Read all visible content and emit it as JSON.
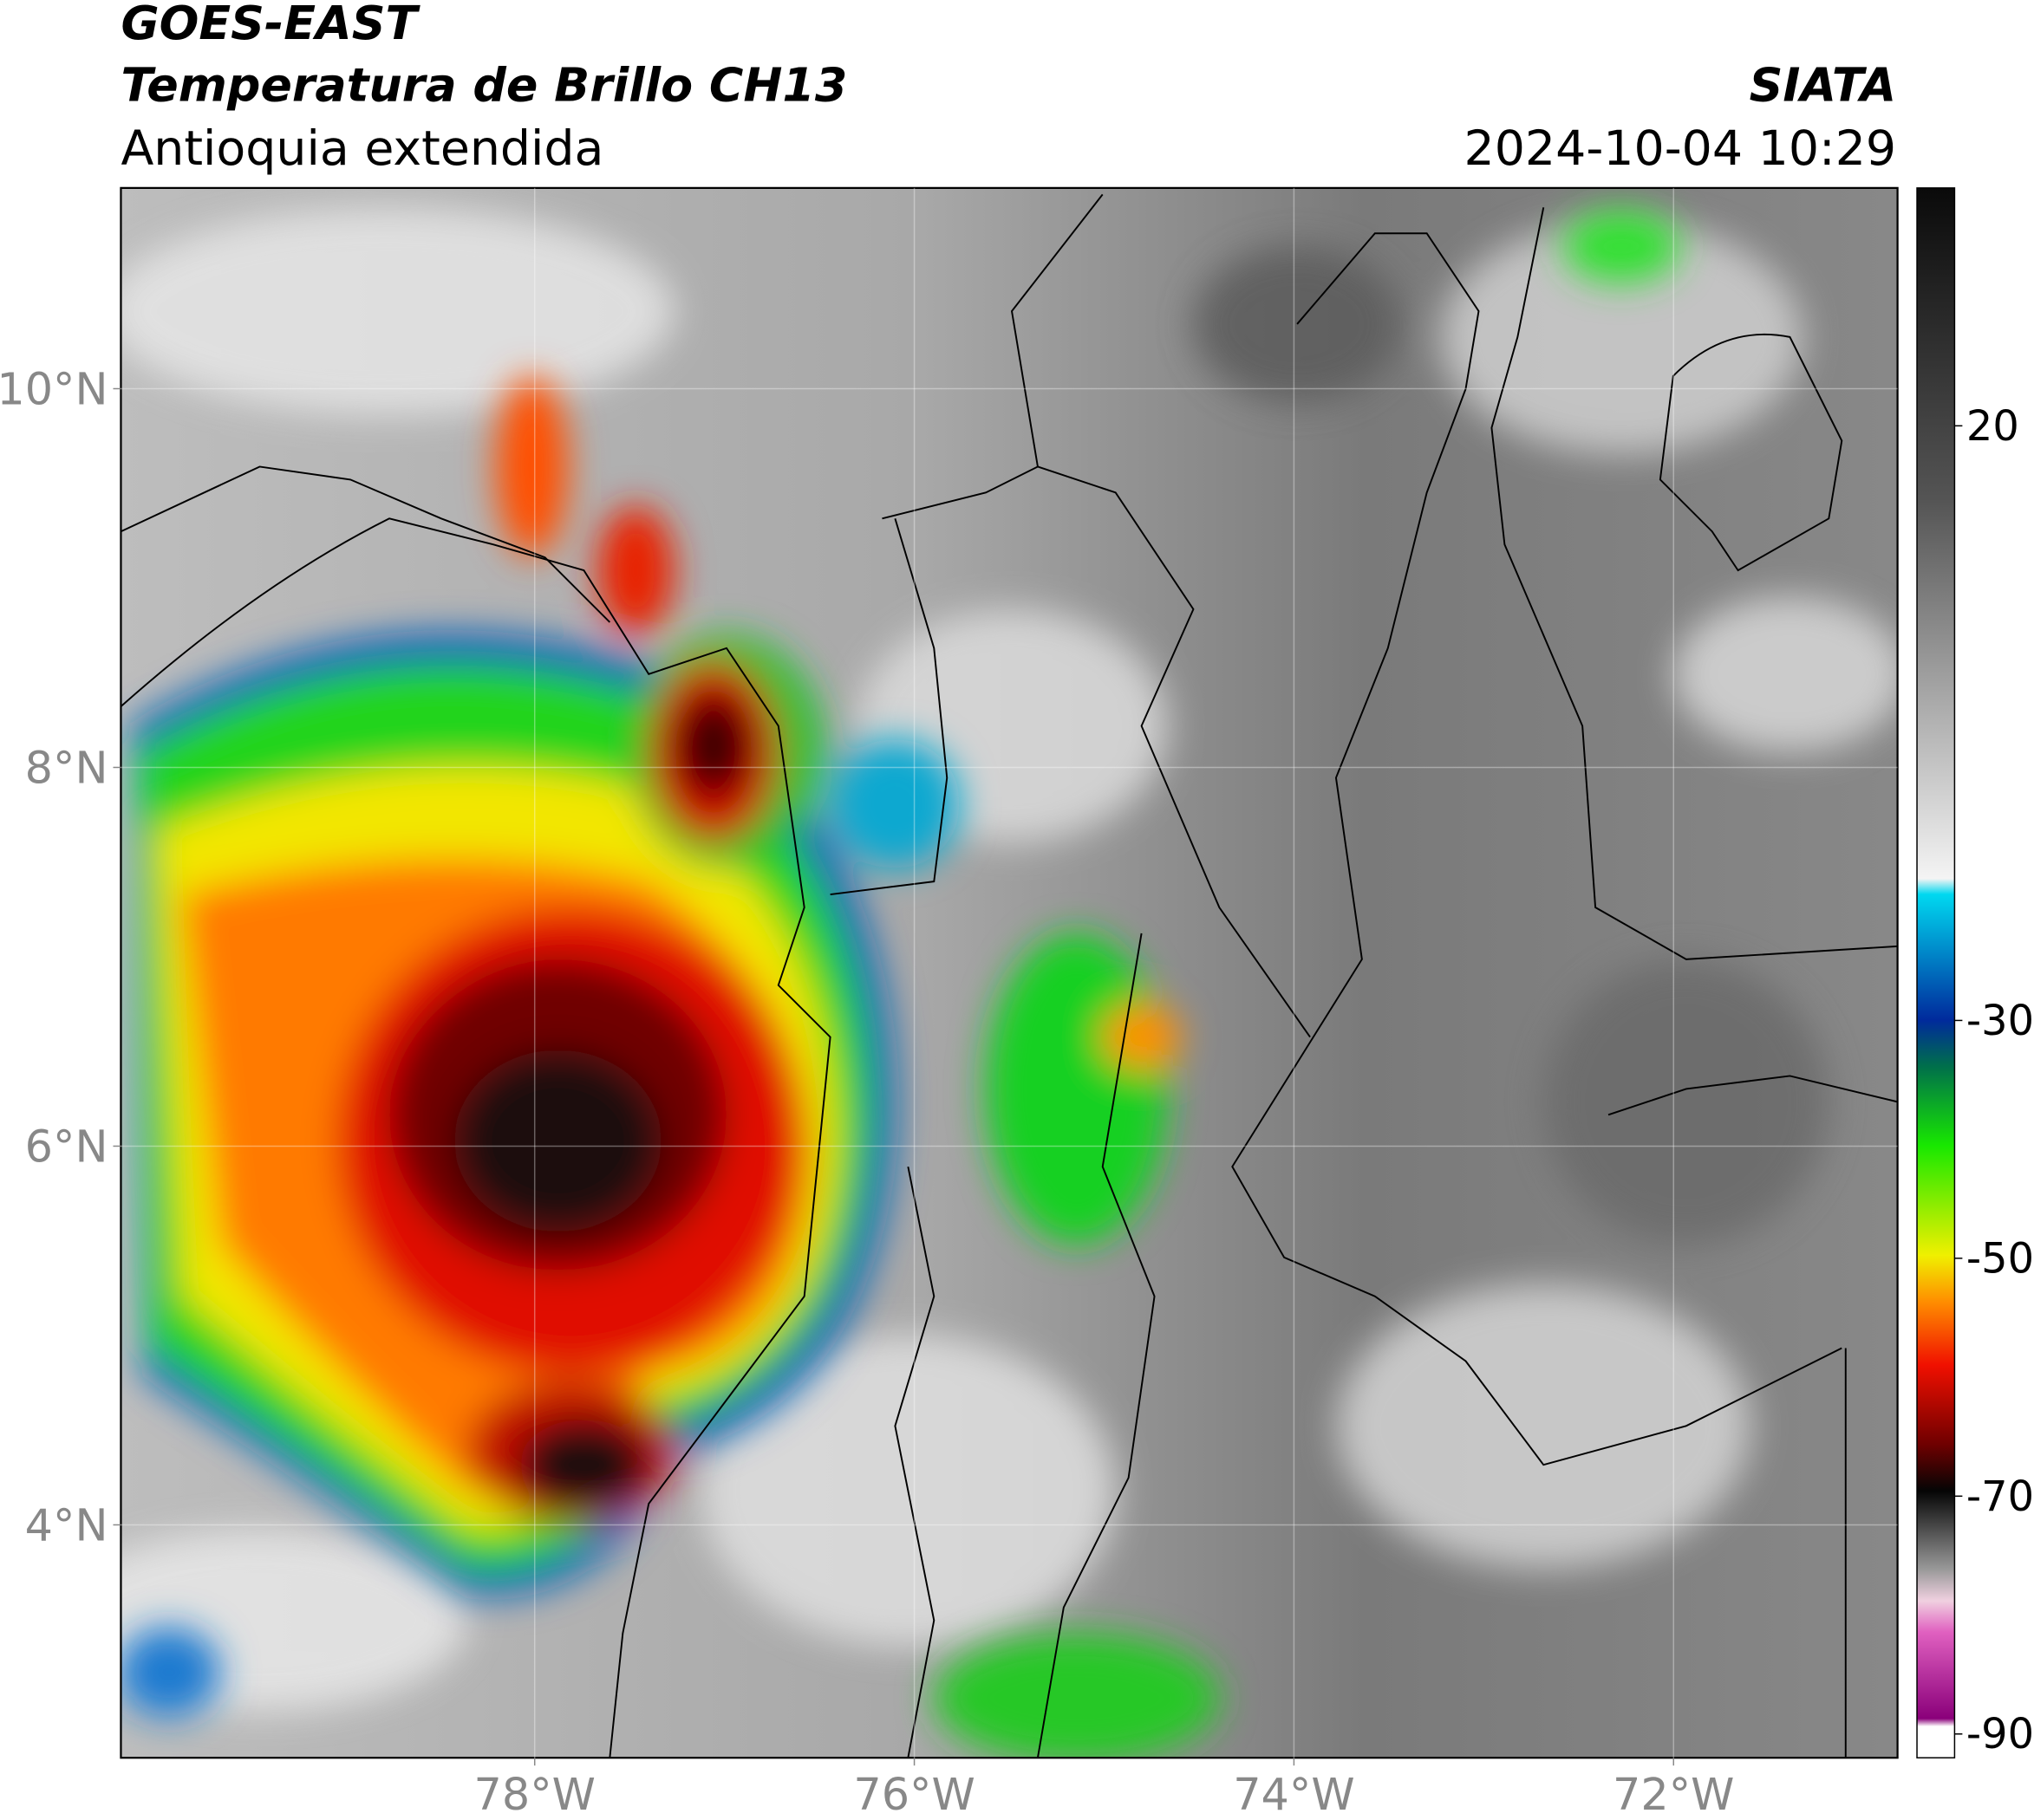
{
  "header": {
    "title": "GOES-EAST",
    "subtitle": "Temperatura de Brillo CH13",
    "region": "Antioquia extendida",
    "source": "SIATA",
    "datetime": "2024-10-04 10:29"
  },
  "map": {
    "xlim": [
      -80.18,
      -70.82
    ],
    "ylim": [
      2.77,
      11.06
    ],
    "xticks": [
      {
        "value": -78,
        "label": "78°W"
      },
      {
        "value": -76,
        "label": "76°W"
      },
      {
        "value": -74,
        "label": "74°W"
      },
      {
        "value": -72,
        "label": "72°W"
      }
    ],
    "yticks": [
      {
        "value": 10,
        "label": "10°N"
      },
      {
        "value": 8,
        "label": "8°N"
      },
      {
        "value": 6,
        "label": "6°N"
      },
      {
        "value": 4,
        "label": "4°N"
      }
    ],
    "grid": true
  },
  "colorbar": {
    "lim": [
      -92,
      40
    ],
    "ticks": [
      20,
      -30,
      -50,
      -70,
      -90
    ]
  }
}
